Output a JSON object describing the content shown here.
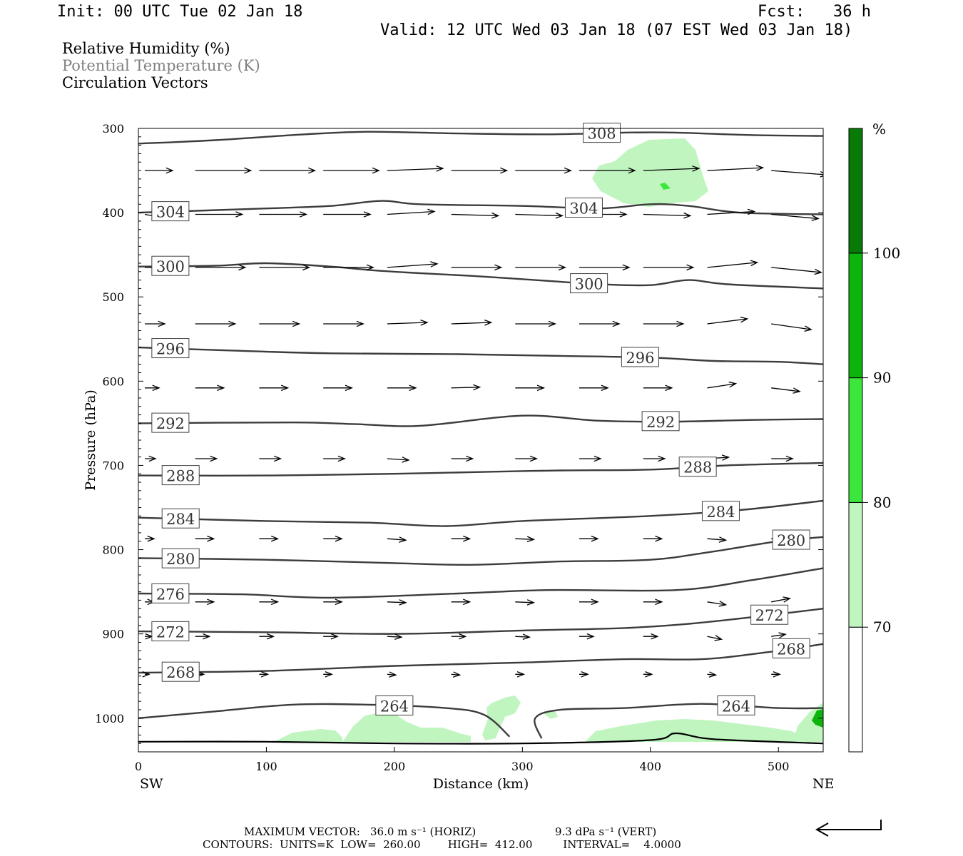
{
  "header": {
    "init": "Init: 00 UTC Tue 02 Jan 18",
    "fcst": "Fcst:   36 h",
    "valid": "Valid: 12 UTC Wed 03 Jan 18 (07 EST Wed 03 Jan 18)"
  },
  "legend": {
    "rh": "Relative Humidity (%)",
    "theta": "Potential Temperature (K)",
    "vectors": "Circulation Vectors"
  },
  "footer": {
    "maxvec_label": "MAXIMUM VECTOR:",
    "maxvec_h": "36.0 m s⁻¹ (HORIZ)",
    "maxvec_v": "9.3 dPa s⁻¹ (VERT)",
    "contours": "CONTOURS:  UNITS=K  LOW=  260.00        HIGH=  412.00         INTERVAL=    4.0000"
  },
  "colors": {
    "rh_70": "#c0f5c0",
    "rh_80": "#3ce63c",
    "rh_90": "#0db40d",
    "rh_100": "#087a08",
    "contour": "#3c3c3c"
  },
  "chart_data": {
    "type": "cross-section",
    "x_axis": {
      "label": "Distance (km)",
      "range": [
        0,
        535
      ],
      "ticks": [
        0,
        100,
        200,
        300,
        400,
        500
      ],
      "left_end_label": "SW",
      "right_end_label": "NE"
    },
    "y_axis": {
      "label": "Pressure (hPa)",
      "range": [
        300,
        1040
      ],
      "inverted": true,
      "ticks": [
        300,
        400,
        500,
        600,
        700,
        800,
        900,
        1000
      ]
    },
    "colorbar": {
      "unit": "%",
      "levels": [
        70,
        80,
        90,
        100
      ]
    },
    "theta_contours": [
      {
        "value": 308,
        "points": [
          [
            0,
            318
          ],
          [
            60,
            314
          ],
          [
            130,
            307
          ],
          [
            180,
            304
          ],
          [
            250,
            306
          ],
          [
            320,
            307
          ],
          [
            380,
            305
          ],
          [
            420,
            305
          ],
          [
            480,
            308
          ],
          [
            535,
            309
          ]
        ]
      },
      {
        "value": 304,
        "points": [
          [
            0,
            400
          ],
          [
            100,
            395
          ],
          [
            150,
            392
          ],
          [
            190,
            386
          ],
          [
            220,
            390
          ],
          [
            300,
            392
          ],
          [
            360,
            395
          ],
          [
            400,
            390
          ],
          [
            430,
            392
          ],
          [
            470,
            400
          ],
          [
            535,
            402
          ]
        ]
      },
      {
        "value": 300,
        "points": [
          [
            0,
            464
          ],
          [
            60,
            463
          ],
          [
            100,
            460
          ],
          [
            150,
            464
          ],
          [
            180,
            468
          ],
          [
            210,
            471
          ],
          [
            260,
            475
          ],
          [
            320,
            481
          ],
          [
            360,
            485
          ],
          [
            400,
            486
          ],
          [
            430,
            480
          ],
          [
            460,
            485
          ],
          [
            535,
            490
          ]
        ]
      },
      {
        "value": 296,
        "points": [
          [
            0,
            560
          ],
          [
            80,
            564
          ],
          [
            150,
            567
          ],
          [
            250,
            568
          ],
          [
            330,
            570
          ],
          [
            400,
            572
          ],
          [
            450,
            576
          ],
          [
            500,
            577
          ],
          [
            535,
            580
          ]
        ]
      },
      {
        "value": 292,
        "points": [
          [
            0,
            650
          ],
          [
            120,
            649
          ],
          [
            170,
            651
          ],
          [
            220,
            653
          ],
          [
            300,
            641
          ],
          [
            360,
            647
          ],
          [
            420,
            648
          ],
          [
            480,
            646
          ],
          [
            535,
            645
          ]
        ]
      },
      {
        "value": 288,
        "points": [
          [
            0,
            712
          ],
          [
            100,
            712
          ],
          [
            200,
            710
          ],
          [
            260,
            708
          ],
          [
            330,
            706
          ],
          [
            400,
            705
          ],
          [
            460,
            700
          ],
          [
            535,
            697
          ]
        ]
      },
      {
        "value": 284,
        "points": [
          [
            0,
            762
          ],
          [
            100,
            766
          ],
          [
            180,
            768
          ],
          [
            240,
            772
          ],
          [
            300,
            766
          ],
          [
            400,
            760
          ],
          [
            470,
            753
          ],
          [
            535,
            742
          ]
        ]
      },
      {
        "value": 280,
        "points": [
          [
            0,
            810
          ],
          [
            100,
            812
          ],
          [
            200,
            816
          ],
          [
            260,
            818
          ],
          [
            330,
            814
          ],
          [
            400,
            812
          ],
          [
            450,
            802
          ],
          [
            500,
            790
          ],
          [
            535,
            785
          ]
        ]
      },
      {
        "value": 276,
        "points": [
          [
            0,
            852
          ],
          [
            80,
            853
          ],
          [
            150,
            857
          ],
          [
            250,
            852
          ],
          [
            320,
            848
          ],
          [
            420,
            848
          ],
          [
            480,
            836
          ],
          [
            535,
            822
          ]
        ]
      },
      {
        "value": 272,
        "points": [
          [
            0,
            897
          ],
          [
            100,
            898
          ],
          [
            200,
            900
          ],
          [
            300,
            896
          ],
          [
            380,
            893
          ],
          [
            430,
            888
          ],
          [
            480,
            880
          ],
          [
            535,
            870
          ]
        ]
      },
      {
        "value": 268,
        "points": [
          [
            0,
            946
          ],
          [
            100,
            944
          ],
          [
            200,
            938
          ],
          [
            300,
            934
          ],
          [
            380,
            930
          ],
          [
            440,
            930
          ],
          [
            490,
            922
          ],
          [
            535,
            912
          ]
        ]
      },
      {
        "value": 264,
        "points": [
          [
            0,
            1000
          ],
          [
            60,
            992
          ],
          [
            120,
            984
          ],
          [
            180,
            984
          ],
          [
            240,
            988
          ],
          [
            270,
            996
          ],
          [
            290,
            1022
          ]
        ]
      },
      {
        "value": 264,
        "points": [
          [
            315,
            1024
          ],
          [
            310,
            1000
          ],
          [
            330,
            990
          ],
          [
            380,
            988
          ],
          [
            440,
            983
          ],
          [
            500,
            988
          ],
          [
            535,
            988
          ]
        ]
      }
    ],
    "terrain_hpa": [
      [
        0,
        1028
      ],
      [
        100,
        1028
      ],
      [
        200,
        1030
      ],
      [
        300,
        1030
      ],
      [
        400,
        1026
      ],
      [
        420,
        1018
      ],
      [
        450,
        1025
      ],
      [
        535,
        1030
      ]
    ],
    "rh_fill_note": "RH > 70% patches near 330-440 km at 310-400 hPa and along the surface below 980 hPa"
  }
}
